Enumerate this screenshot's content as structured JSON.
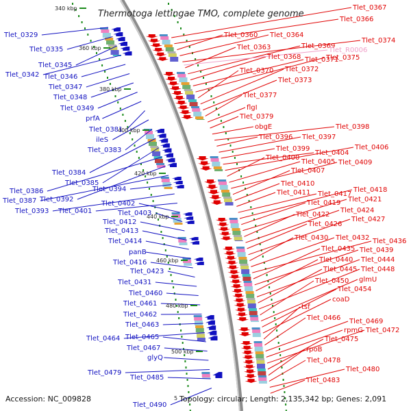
{
  "title": "Thermotoga lettingae TMO, complete genome",
  "accession": "Accession: NC_009828",
  "footer": "Topology: circular; Length: 2,135,342 bp; Genes: 2,091",
  "footer_mark": "5",
  "colors": {
    "forward": "#e00000",
    "reverse": "#1010c0",
    "rna": "#f0a0c8",
    "ticks": "#1a8a1a",
    "backbone": "#8c8c8c"
  },
  "kbp_ticks": [
    {
      "label": "340 kbp"
    },
    {
      "label": "360 kbp"
    },
    {
      "label": "380 kbp"
    },
    {
      "label": "400 kbp"
    },
    {
      "label": "420 kbp"
    },
    {
      "label": "440 kbp"
    },
    {
      "label": "460 kbp"
    },
    {
      "label": "480 kbp"
    },
    {
      "label": "500 kbp"
    }
  ],
  "left_labels": [
    "Tlet_0329",
    "Tlet_0335",
    "Tlet_0345",
    "Tlet_0342",
    "Tlet_0346",
    "Tlet_0347",
    "Tlet_0348",
    "Tlet_0349",
    "prfA",
    "Tlet_0381",
    "ileS",
    "Tlet_0383",
    "Tlet_0384",
    "Tlet_0385",
    "Tlet_0386",
    "Tlet_0392",
    "Tlet_0387",
    "Tlet_0394",
    "Tlet_0393",
    "Tlet_0401",
    "Tlet_0402",
    "Tlet_0403",
    "Tlet_0412",
    "Tlet_0413",
    "Tlet_0414",
    "panB",
    "Tlet_0416",
    "Tlet_0423",
    "Tlet_0431",
    "Tlet_0460",
    "Tlet_0461",
    "Tlet_0462",
    "Tlet_0463",
    "Tlet_0464",
    "Tlet_0465",
    "Tlet_0467",
    "glyQ",
    "Tlet_0479",
    "Tlet_0485",
    "Tlet_0490"
  ],
  "right_labels": [
    "Tlet_0367",
    "Tlet_0366",
    "Tlet_0360",
    "Tlet_0364",
    "Tlet_0374",
    "Tlet_0363",
    "Tlet_0369",
    "Tlet_0368",
    "Tlet_0371",
    "Tlet_0375",
    "Tlet_0370",
    "Tlet_0372",
    "Tlet_0373",
    "Tlet_0377",
    "flgI",
    "Tlet_0379",
    "obgE",
    "Tlet_0398",
    "Tlet_0396",
    "Tlet_0397",
    "Tlet_0399",
    "Tlet_0404",
    "Tlet_0406",
    "Tlet_0400",
    "Tlet_0405",
    "Tlet_0409",
    "Tlet_0407",
    "Tlet_0410",
    "Tlet_0411",
    "Tlet_0417",
    "Tlet_0418",
    "Tlet_0419",
    "Tlet_0421",
    "Tlet_0422",
    "Tlet_0424",
    "Tlet_0426",
    "Tlet_0427",
    "Tlet_0430",
    "Tlet_0432",
    "Tlet_0436",
    "Tlet_0435",
    "Tlet_0439",
    "Tlet_0440",
    "Tlet_0444",
    "Tlet_0445",
    "Tlet_0448",
    "Tlet_0450",
    "glmU",
    "Tlet_0454",
    "coaD",
    "tsf",
    "Tlet_0466",
    "Tlet_0469",
    "rpmG",
    "Tlet_0472",
    "Tlet_0475",
    "rpoB",
    "Tlet_0478",
    "Tlet_0480",
    "Tlet_0483"
  ],
  "rna_labels": [
    "Tlet_R0006"
  ]
}
